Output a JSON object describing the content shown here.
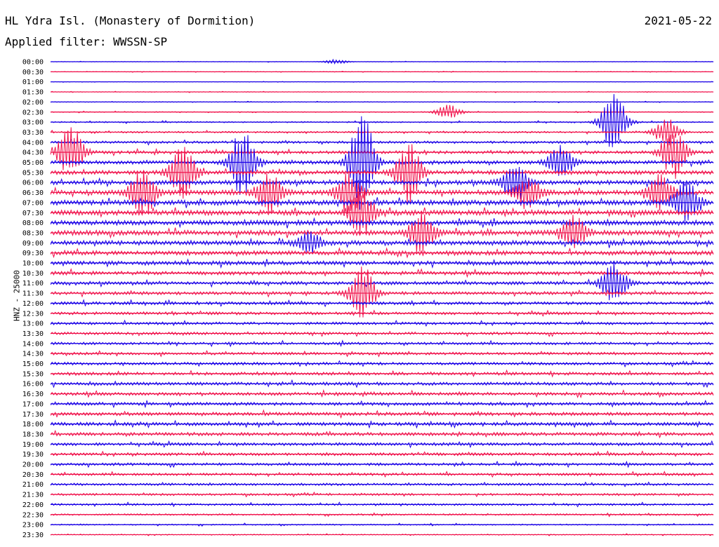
{
  "header": {
    "station": "HL Ydra Isl. (Monastery of Dormition)",
    "date": "2021-05-22",
    "filter": "Applied filter: WWSSN-SP",
    "channel": "HNZ - 25000"
  },
  "colors": {
    "odd_trace": "#1a00e6",
    "even_trace": "#f0104a"
  },
  "chart_data": {
    "type": "line",
    "title": "HL Ydra Isl. (Monastery of Dormition)",
    "ylabel": "HNZ - 25000",
    "xlabel": "",
    "grid": false,
    "row_labels": [
      "00:00",
      "00:30",
      "01:00",
      "01:30",
      "02:00",
      "02:30",
      "03:00",
      "03:30",
      "04:00",
      "04:30",
      "05:00",
      "05:30",
      "06:00",
      "06:30",
      "07:00",
      "07:30",
      "08:00",
      "08:30",
      "09:00",
      "09:30",
      "10:00",
      "10:30",
      "11:00",
      "11:30",
      "12:00",
      "12:30",
      "13:00",
      "13:30",
      "14:00",
      "14:30",
      "15:00",
      "15:30",
      "16:00",
      "16:30",
      "17:00",
      "17:30",
      "18:00",
      "18:30",
      "19:00",
      "19:30",
      "20:00",
      "20:30",
      "21:00",
      "21:30",
      "22:00",
      "22:30",
      "23:00",
      "23:30"
    ],
    "row_colors": [
      "blue",
      "red"
    ],
    "noise_level": [
      0.3,
      0.3,
      0.3,
      0.4,
      0.4,
      0.5,
      0.8,
      1.0,
      1.4,
      1.8,
      2.2,
      2.4,
      2.6,
      2.8,
      3.0,
      3.0,
      3.0,
      3.0,
      2.8,
      2.6,
      2.4,
      2.2,
      2.0,
      1.9,
      1.8,
      1.7,
      1.6,
      1.6,
      1.6,
      1.6,
      1.7,
      1.8,
      1.9,
      1.9,
      1.9,
      2.0,
      2.0,
      2.0,
      1.8,
      1.7,
      1.6,
      1.5,
      1.4,
      1.3,
      1.2,
      1.0,
      0.8,
      0.6
    ],
    "events": [
      {
        "row": 0,
        "x": 0.43,
        "amp": 3
      },
      {
        "row": 5,
        "x": 0.6,
        "amp": 10
      },
      {
        "row": 6,
        "x": 0.85,
        "amp": 45
      },
      {
        "row": 7,
        "x": 0.93,
        "amp": 20
      },
      {
        "row": 9,
        "x": 0.03,
        "amp": 40
      },
      {
        "row": 9,
        "x": 0.94,
        "amp": 35
      },
      {
        "row": 10,
        "x": 0.47,
        "amp": 70
      },
      {
        "row": 10,
        "x": 0.29,
        "amp": 50
      },
      {
        "row": 10,
        "x": 0.77,
        "amp": 25
      },
      {
        "row": 11,
        "x": 0.2,
        "amp": 40
      },
      {
        "row": 11,
        "x": 0.54,
        "amp": 45
      },
      {
        "row": 12,
        "x": 0.7,
        "amp": 30
      },
      {
        "row": 13,
        "x": 0.14,
        "amp": 35
      },
      {
        "row": 13,
        "x": 0.33,
        "amp": 30
      },
      {
        "row": 13,
        "x": 0.45,
        "amp": 30
      },
      {
        "row": 13,
        "x": 0.72,
        "amp": 25
      },
      {
        "row": 13,
        "x": 0.92,
        "amp": 25
      },
      {
        "row": 14,
        "x": 0.96,
        "amp": 30
      },
      {
        "row": 15,
        "x": 0.47,
        "amp": 35
      },
      {
        "row": 17,
        "x": 0.56,
        "amp": 30
      },
      {
        "row": 17,
        "x": 0.79,
        "amp": 25
      },
      {
        "row": 18,
        "x": 0.39,
        "amp": 15
      },
      {
        "row": 22,
        "x": 0.85,
        "amp": 30
      },
      {
        "row": 23,
        "x": 0.47,
        "amp": 40
      }
    ]
  }
}
